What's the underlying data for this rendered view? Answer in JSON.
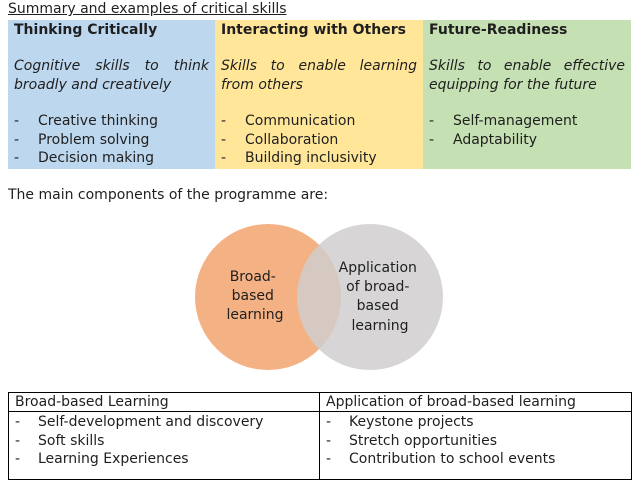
{
  "heading": "Summary and examples of critical skills",
  "skills": [
    {
      "title": "Thinking Critically",
      "description": "Cognitive skills to think broadly and creatively",
      "items": [
        "Creative thinking",
        "Problem solving",
        "Decision making"
      ],
      "color": "#bdd7ee"
    },
    {
      "title": "Interacting with Others",
      "description": "Skills to enable learning from others",
      "items": [
        "Communication",
        "Collaboration",
        "Building inclusivity"
      ],
      "color": "#ffe699"
    },
    {
      "title": "Future-Readiness",
      "description": "Skills to enable effective equipping for the future",
      "items": [
        "Self-management",
        "Adaptability"
      ],
      "color": "#c5e0b3"
    }
  ],
  "bullet_marker": "-",
  "components_intro": "The main components of the programme are:",
  "venn": {
    "left": {
      "lines": [
        "Broad-",
        "based",
        "learning"
      ],
      "color": "#f4b183"
    },
    "right": {
      "lines": [
        "Application",
        "of broad-",
        "based",
        "learning"
      ],
      "color": "#d0cece"
    }
  },
  "table": {
    "columns": [
      {
        "header": "Broad-based Learning",
        "items": [
          "Self-development and discovery",
          "Soft skills",
          "Learning Experiences"
        ]
      },
      {
        "header": "Application of broad-based learning",
        "items": [
          "Keystone projects",
          "Stretch opportunities",
          "Contribution to school events"
        ]
      }
    ]
  }
}
